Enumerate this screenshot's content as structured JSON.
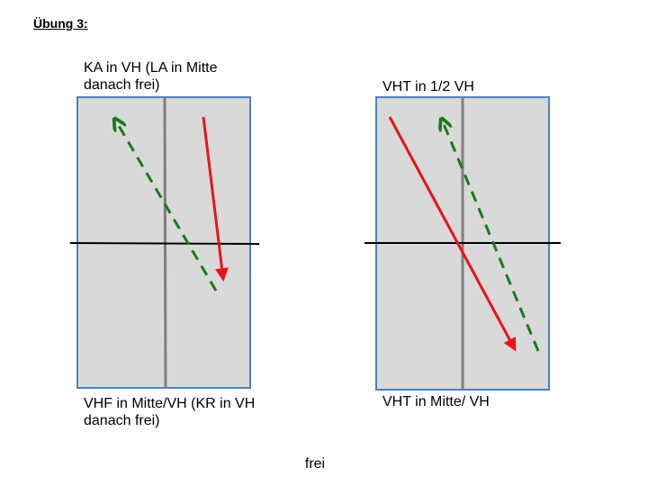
{
  "header": {
    "title": "Übung 3:"
  },
  "diagrams": [
    {
      "top_label": "KA in VH (LA in Mitte danach frei)",
      "bottom_label": "VHF in Mitte/VH (KR in VH danach frei)"
    },
    {
      "top_label": "VHT in 1/2 VH",
      "bottom_label": "VHT in Mitte/ VH"
    }
  ],
  "footer": {
    "text": "frei"
  }
}
